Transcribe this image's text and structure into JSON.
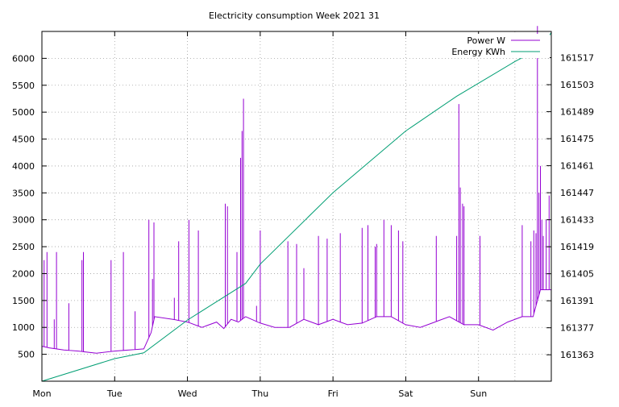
{
  "chart_data": {
    "type": "line",
    "title": "Electricity consumption Week 2021 31",
    "x_categories": [
      "Mon",
      "Tue",
      "Wed",
      "Thu",
      "Fri",
      "Sat",
      "Sun"
    ],
    "xlim": [
      0,
      7
    ],
    "y_left": {
      "ticks": [
        500,
        1000,
        1500,
        2000,
        2500,
        3000,
        3500,
        4000,
        4500,
        5000,
        5500,
        6000
      ],
      "lim": [
        0,
        6500
      ]
    },
    "y_right": {
      "ticks": [
        161363,
        161377,
        161391,
        161405,
        161419,
        161433,
        161447,
        161461,
        161475,
        161489,
        161503,
        161517
      ],
      "lim": [
        161349.3,
        161530.6
      ]
    },
    "grid": true,
    "legend_position": "top-right",
    "series": [
      {
        "name": "Power W",
        "axis": "left",
        "color": "#9400d3",
        "base": [
          [
            0.0,
            650
          ],
          [
            0.1,
            620
          ],
          [
            0.3,
            580
          ],
          [
            0.5,
            560
          ],
          [
            0.75,
            520
          ],
          [
            1.0,
            560
          ],
          [
            1.2,
            580
          ],
          [
            1.4,
            600
          ],
          [
            1.5,
            900
          ],
          [
            1.55,
            1200
          ],
          [
            1.8,
            1150
          ],
          [
            2.0,
            1100
          ],
          [
            2.2,
            1000
          ],
          [
            2.4,
            1100
          ],
          [
            2.5,
            980
          ],
          [
            2.6,
            1150
          ],
          [
            2.7,
            1100
          ],
          [
            2.8,
            1200
          ],
          [
            3.0,
            1080
          ],
          [
            3.2,
            1000
          ],
          [
            3.4,
            1000
          ],
          [
            3.6,
            1150
          ],
          [
            3.8,
            1050
          ],
          [
            4.0,
            1150
          ],
          [
            4.2,
            1050
          ],
          [
            4.4,
            1080
          ],
          [
            4.6,
            1200
          ],
          [
            4.8,
            1200
          ],
          [
            5.0,
            1050
          ],
          [
            5.2,
            1000
          ],
          [
            5.4,
            1100
          ],
          [
            5.6,
            1200
          ],
          [
            5.8,
            1050
          ],
          [
            6.0,
            1050
          ],
          [
            6.2,
            950
          ],
          [
            6.4,
            1100
          ],
          [
            6.6,
            1200
          ],
          [
            6.75,
            1200
          ],
          [
            6.85,
            1700
          ],
          [
            7.0,
            1700
          ]
        ],
        "spikes": [
          [
            0.03,
            2250
          ],
          [
            0.07,
            2400
          ],
          [
            0.17,
            1150
          ],
          [
            0.2,
            2400
          ],
          [
            0.37,
            1450
          ],
          [
            0.55,
            2250
          ],
          [
            0.57,
            2400
          ],
          [
            0.95,
            2250
          ],
          [
            1.12,
            2400
          ],
          [
            1.28,
            1300
          ],
          [
            1.47,
            3000
          ],
          [
            1.52,
            1900
          ],
          [
            1.54,
            2950
          ],
          [
            1.82,
            1550
          ],
          [
            1.88,
            2600
          ],
          [
            2.02,
            3000
          ],
          [
            2.15,
            2800
          ],
          [
            2.52,
            3300
          ],
          [
            2.55,
            3250
          ],
          [
            2.68,
            2400
          ],
          [
            2.73,
            4150
          ],
          [
            2.75,
            4650
          ],
          [
            2.77,
            5250
          ],
          [
            2.95,
            1400
          ],
          [
            3.0,
            2800
          ],
          [
            3.38,
            2600
          ],
          [
            3.5,
            2550
          ],
          [
            3.6,
            2100
          ],
          [
            3.8,
            2700
          ],
          [
            3.92,
            2650
          ],
          [
            4.1,
            2750
          ],
          [
            4.4,
            2850
          ],
          [
            4.48,
            2900
          ],
          [
            4.58,
            2500
          ],
          [
            4.6,
            2550
          ],
          [
            4.7,
            3000
          ],
          [
            4.8,
            2900
          ],
          [
            4.9,
            2800
          ],
          [
            4.96,
            2600
          ],
          [
            5.42,
            2700
          ],
          [
            5.7,
            2700
          ],
          [
            5.73,
            5150
          ],
          [
            5.75,
            3600
          ],
          [
            5.78,
            3300
          ],
          [
            5.8,
            3250
          ],
          [
            6.02,
            2700
          ],
          [
            6.6,
            2900
          ],
          [
            6.72,
            2600
          ],
          [
            6.76,
            2800
          ],
          [
            6.79,
            2750
          ],
          [
            6.81,
            6600
          ],
          [
            6.83,
            3500
          ],
          [
            6.85,
            4000
          ],
          [
            6.87,
            3000
          ],
          [
            6.89,
            2700
          ],
          [
            6.93,
            3000
          ],
          [
            6.97,
            3450
          ]
        ]
      },
      {
        "name": "Energy KWh",
        "axis": "right",
        "color": "#009e73",
        "points": [
          [
            0.0,
            161349.3
          ],
          [
            1.0,
            161361.0
          ],
          [
            1.4,
            161364.0
          ],
          [
            2.0,
            161381.0
          ],
          [
            2.8,
            161400.0
          ],
          [
            3.0,
            161410.0
          ],
          [
            4.0,
            161447.0
          ],
          [
            5.0,
            161479.0
          ],
          [
            5.7,
            161497.0
          ],
          [
            6.5,
            161515.0
          ],
          [
            6.85,
            161522.0
          ],
          [
            7.0,
            161530.0
          ]
        ]
      }
    ]
  }
}
